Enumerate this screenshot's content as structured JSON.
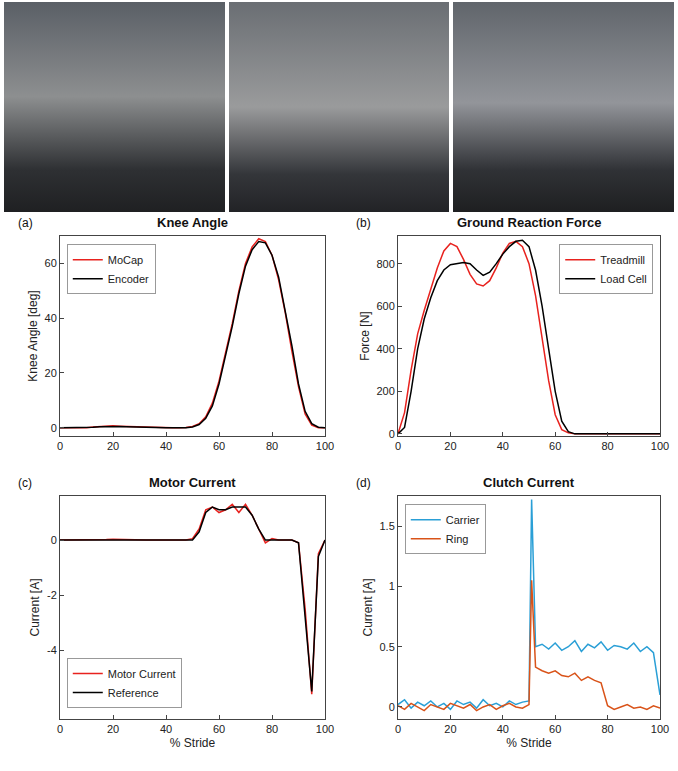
{
  "chart_data": [
    {
      "type": "line",
      "panel": "(a)",
      "title": "Knee Angle",
      "ylabel": "Knee Angle [deg]",
      "x": [
        0,
        2.5,
        5,
        7.5,
        10,
        12.5,
        15,
        17.5,
        20,
        22.5,
        25,
        27.5,
        30,
        32.5,
        35,
        37.5,
        40,
        42.5,
        45,
        47.5,
        50,
        52.5,
        55,
        57.5,
        60,
        62.5,
        65,
        67.5,
        70,
        72.5,
        75,
        77.5,
        80,
        82.5,
        85,
        87.5,
        90,
        92.5,
        95,
        97.5,
        100
      ],
      "series": [
        {
          "name": "MoCap",
          "color": "#e8221e",
          "values": [
            0,
            0,
            0,
            0,
            0,
            0.3,
            0.5,
            0.6,
            0.7,
            0.6,
            0.5,
            0.4,
            0.3,
            0.2,
            0.1,
            0,
            0,
            0,
            0,
            0.1,
            0.5,
            1.5,
            4,
            9,
            17,
            27,
            38,
            50,
            60,
            66,
            69,
            68,
            63,
            54,
            42,
            28,
            15,
            5,
            1,
            0,
            0
          ]
        },
        {
          "name": "Encoder",
          "color": "#000000",
          "values": [
            0,
            0,
            0,
            0,
            0,
            0.2,
            0.4,
            0.5,
            0.5,
            0.5,
            0.4,
            0.3,
            0.3,
            0.2,
            0.1,
            0,
            0,
            0,
            0,
            0,
            0.3,
            1.2,
            3.5,
            8,
            16,
            26,
            37,
            49,
            59,
            65,
            68,
            67.5,
            63,
            55,
            43,
            30,
            16,
            6,
            1.5,
            0.2,
            0
          ]
        }
      ],
      "xlim": [
        0,
        100
      ],
      "xticks": [
        0,
        20,
        40,
        60,
        80,
        100
      ],
      "ylim": [
        -3,
        70
      ],
      "yticks": [
        0,
        20,
        40,
        60
      ],
      "grid": false,
      "legend": "upper left"
    },
    {
      "type": "line",
      "panel": "(b)",
      "title": "Ground Reaction Force",
      "ylabel": "Force [N]",
      "x": [
        0,
        2.5,
        5,
        7.5,
        10,
        12.5,
        15,
        17.5,
        20,
        22.5,
        25,
        27.5,
        30,
        32.5,
        35,
        37.5,
        40,
        42.5,
        45,
        47.5,
        50,
        52.5,
        55,
        57.5,
        60,
        62.5,
        65,
        67.5,
        70,
        72.5,
        75,
        77.5,
        80,
        82.5,
        85,
        87.5,
        90,
        92.5,
        95,
        97.5,
        100
      ],
      "series": [
        {
          "name": "Treadmill",
          "color": "#e8221e",
          "values": [
            0,
            100,
            300,
            470,
            580,
            680,
            780,
            860,
            895,
            880,
            820,
            750,
            705,
            695,
            720,
            780,
            850,
            895,
            905,
            880,
            800,
            650,
            450,
            250,
            90,
            20,
            5,
            0,
            0,
            0,
            0,
            0,
            0,
            0,
            0,
            0,
            0,
            0,
            0,
            0,
            0
          ]
        },
        {
          "name": "Load Cell",
          "color": "#000000",
          "values": [
            0,
            30,
            200,
            400,
            540,
            640,
            720,
            770,
            795,
            800,
            805,
            800,
            770,
            745,
            760,
            800,
            845,
            880,
            905,
            910,
            880,
            770,
            600,
            400,
            200,
            60,
            10,
            0,
            0,
            0,
            0,
            0,
            0,
            0,
            0,
            0,
            0,
            0,
            0,
            0,
            0
          ]
        }
      ],
      "xlim": [
        0,
        100
      ],
      "xticks": [
        0,
        20,
        40,
        60,
        80,
        100
      ],
      "ylim": [
        -10,
        930
      ],
      "yticks": [
        0,
        200,
        400,
        600,
        800
      ],
      "grid": false,
      "legend": "upper right"
    },
    {
      "type": "line",
      "panel": "(c)",
      "title": "Motor Current",
      "xlabel": "% Stride",
      "ylabel": "Current [A]",
      "x": [
        0,
        2.5,
        5,
        7.5,
        10,
        12.5,
        15,
        17.5,
        20,
        22.5,
        25,
        27.5,
        30,
        32.5,
        35,
        37.5,
        40,
        42.5,
        45,
        47.5,
        50,
        52.5,
        55,
        57.5,
        60,
        62.5,
        65,
        67.5,
        70,
        72.5,
        75,
        77.5,
        80,
        82.5,
        85,
        87.5,
        90,
        92.5,
        95,
        97.5,
        100
      ],
      "series": [
        {
          "name": "Motor Current",
          "color": "#e8221e",
          "values": [
            0,
            0,
            0,
            0,
            0,
            0,
            0,
            0.02,
            0.03,
            0.02,
            0.01,
            0,
            0,
            0,
            0,
            0,
            0,
            0,
            0,
            0,
            0.05,
            0.4,
            1.1,
            1.2,
            1.0,
            1.1,
            1.3,
            1.0,
            1.3,
            0.9,
            0.4,
            -0.1,
            0.05,
            0,
            0,
            0,
            -0.1,
            -2.5,
            -5.6,
            -0.5,
            0
          ]
        },
        {
          "name": "Reference",
          "color": "#000000",
          "values": [
            0,
            0,
            0,
            0,
            0,
            0,
            0,
            0,
            0,
            0,
            0,
            0,
            0,
            0,
            0,
            0,
            0,
            0,
            0,
            0,
            0,
            0.3,
            1.0,
            1.2,
            1.1,
            1.1,
            1.2,
            1.2,
            1.2,
            0.9,
            0.4,
            0,
            0,
            0,
            0,
            0,
            -0.1,
            -2.8,
            -5.5,
            -0.6,
            0
          ]
        }
      ],
      "xlim": [
        0,
        100
      ],
      "xticks": [
        0,
        20,
        40,
        60,
        80,
        100
      ],
      "ylim": [
        -6.5,
        1.6
      ],
      "yticks": [
        -4,
        -2,
        0
      ],
      "grid": false,
      "legend": "lower left"
    },
    {
      "type": "line",
      "panel": "(d)",
      "title": "Clutch Current",
      "xlabel": "% Stride",
      "ylabel": "Current [A]",
      "x": [
        0,
        2.5,
        5,
        7.5,
        10,
        12.5,
        15,
        17.5,
        20,
        22.5,
        25,
        27.5,
        30,
        32.5,
        35,
        37.5,
        40,
        42.5,
        45,
        47.5,
        50,
        51,
        52.5,
        55,
        57.5,
        60,
        62.5,
        65,
        67.5,
        70,
        72.5,
        75,
        77.5,
        80,
        82.5,
        85,
        87.5,
        90,
        92.5,
        95,
        97.5,
        100
      ],
      "series": [
        {
          "name": "Carrier",
          "color": "#2a9fd6",
          "values": [
            0.02,
            0.06,
            -0.01,
            0.04,
            0.01,
            0.05,
            0,
            0.03,
            -0.02,
            0.05,
            0.02,
            0.04,
            -0.01,
            0.06,
            0.01,
            0.03,
            0,
            0.05,
            0.02,
            0.04,
            0.05,
            1.72,
            0.5,
            0.52,
            0.48,
            0.53,
            0.47,
            0.5,
            0.55,
            0.46,
            0.52,
            0.49,
            0.54,
            0.47,
            0.51,
            0.5,
            0.48,
            0.53,
            0.46,
            0.5,
            0.45,
            0.1
          ]
        },
        {
          "name": "Ring",
          "color": "#d95319",
          "values": [
            0.01,
            -0.02,
            0.03,
            0,
            -0.03,
            0.02,
            0,
            -0.02,
            0.03,
            0.01,
            -0.01,
            0.02,
            -0.03,
            0,
            0.02,
            -0.02,
            0.01,
            0.03,
            0,
            -0.01,
            0.02,
            1.05,
            0.33,
            0.3,
            0.28,
            0.3,
            0.26,
            0.25,
            0.28,
            0.22,
            0.25,
            0.22,
            0.2,
            0.01,
            -0.02,
            0,
            0.02,
            -0.01,
            0,
            -0.02,
            0.01,
            -0.01
          ]
        }
      ],
      "xlim": [
        0,
        100
      ],
      "xticks": [
        0,
        20,
        40,
        60,
        80,
        100
      ],
      "ylim": [
        -0.1,
        1.75
      ],
      "yticks": [
        0,
        0.5,
        1,
        1.5
      ],
      "grid": false,
      "legend": "upper left"
    }
  ]
}
